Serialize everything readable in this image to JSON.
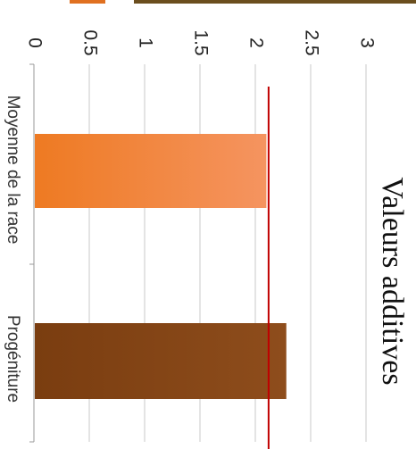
{
  "chart_data": {
    "type": "bar",
    "orientation": "horizontal",
    "title": "Valeurs additives",
    "categories": [
      "Moyenne de la race",
      "Progéniture"
    ],
    "values": [
      2.1,
      2.28
    ],
    "reference_line": {
      "value": 2.12,
      "color": "#c00000"
    },
    "xlim": [
      0,
      3
    ],
    "ticks": [
      "0",
      "0.5",
      "1",
      "1.5",
      "2",
      "2.5",
      "3"
    ],
    "bar_colors": [
      "#f0812f",
      "#8b4513"
    ],
    "legend_swatch_colors": [
      "#e07020",
      "#6b4e1e"
    ],
    "grid": true,
    "rotated": "90deg clockwise"
  }
}
